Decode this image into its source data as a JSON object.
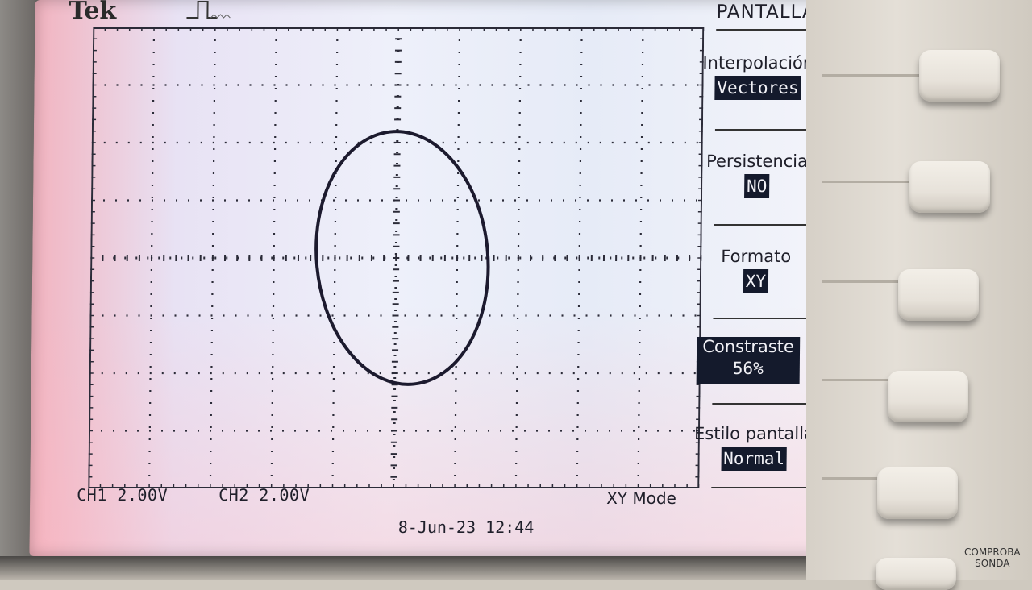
{
  "brand": "Tek",
  "channels": {
    "ch1": {
      "name": "CH1",
      "scale": "2.00V"
    },
    "ch2": {
      "name": "CH2",
      "scale": "2.00V"
    }
  },
  "mode": "XY Mode",
  "timestamp": "8-Jun-23 12:44",
  "menu": {
    "title": "PANTALLA",
    "items": [
      {
        "label": "Interpolación",
        "value": "Vectores"
      },
      {
        "label": "Persistencia",
        "value": "NO"
      },
      {
        "label": "Formato",
        "value": "XY"
      },
      {
        "label": "Constraste",
        "value": "56%"
      },
      {
        "label": "Estilo pantalla",
        "value": "Normal"
      }
    ]
  },
  "probe_label": {
    "line1": "COMPROBA",
    "line2": "SONDA"
  },
  "trace": {
    "color": "#1c1a2e",
    "shape": "ellipse",
    "center_div": {
      "x": 0.1,
      "y": 0.0
    },
    "radius_div": {
      "x": 1.4,
      "y": 2.2
    }
  }
}
